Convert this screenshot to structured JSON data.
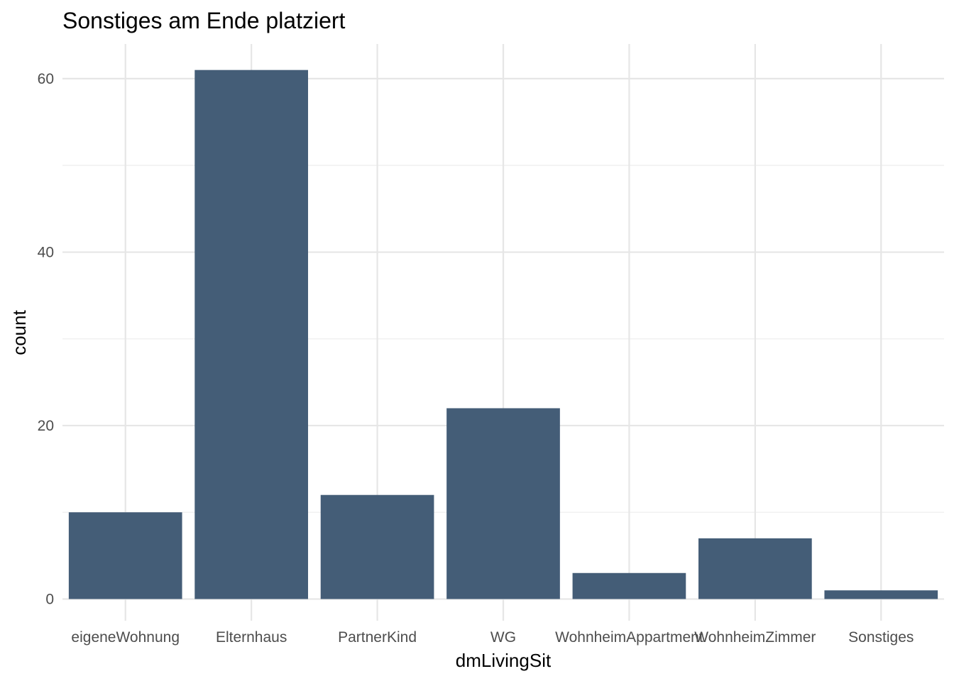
{
  "chart_data": {
    "type": "bar",
    "title": "Sonstiges am Ende platziert",
    "xlabel": "dmLivingSit",
    "ylabel": "count",
    "categories": [
      "eigeneWohnung",
      "Elternhaus",
      "PartnerKind",
      "WG",
      "WohnheimAppartment",
      "WohnheimZimmer",
      "Sonstiges"
    ],
    "values": [
      10,
      61,
      12,
      22,
      3,
      7,
      1
    ],
    "ylim": [
      -2.5,
      64
    ],
    "yticks": [
      0,
      20,
      40,
      60
    ],
    "yticks_minor": [
      10,
      30,
      50
    ],
    "grid": true,
    "legend": "none",
    "bar_color": "#445d77"
  }
}
